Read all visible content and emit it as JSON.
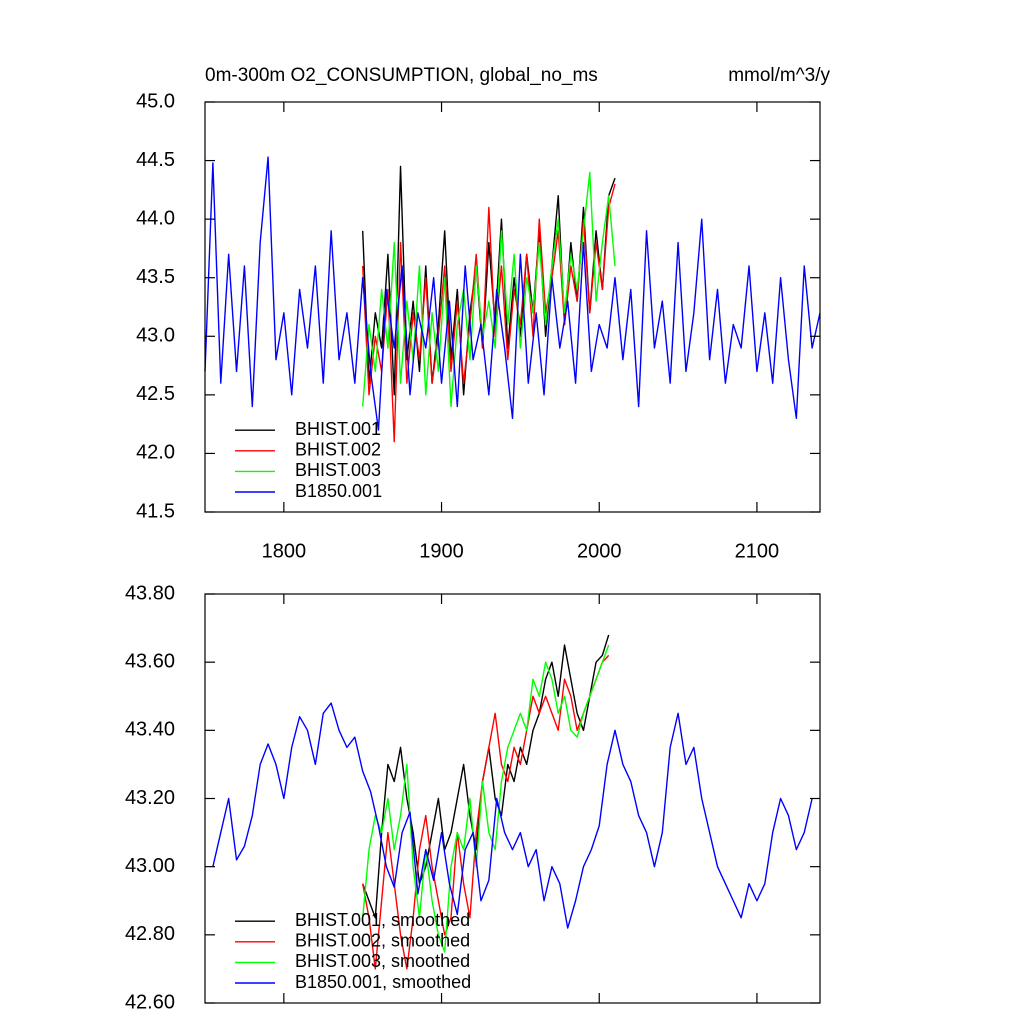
{
  "chart_data": [
    {
      "type": "line",
      "title": "0m-300m O2_CONSUMPTION, global_no_ms",
      "units": "mmol/m^3/y",
      "xlim": [
        1750,
        2140
      ],
      "xticks": [
        1800,
        1900,
        2000,
        2100
      ],
      "ylim": [
        41.5,
        45.0
      ],
      "yticks": [
        41.5,
        {
          "value": 42.0,
          "label": "42.0"
        },
        42.5,
        {
          "value": 43.0,
          "label": "43.0"
        },
        43.5,
        {
          "value": 44.0,
          "label": "44.0"
        },
        44.5,
        {
          "value": 45.0,
          "label": "45.0"
        }
      ],
      "legend": "lower left",
      "series": [
        {
          "name": "BHIST.001",
          "color": "#000000",
          "x": [
            1850,
            1854,
            1858,
            1862,
            1866,
            1870,
            1874,
            1878,
            1882,
            1886,
            1890,
            1894,
            1898,
            1902,
            1906,
            1910,
            1914,
            1918,
            1922,
            1926,
            1930,
            1934,
            1938,
            1942,
            1946,
            1950,
            1954,
            1958,
            1962,
            1966,
            1970,
            1974,
            1978,
            1982,
            1986,
            1990,
            1994,
            1998,
            2002,
            2006,
            2010
          ],
          "values": [
            43.9,
            42.6,
            43.2,
            42.9,
            43.7,
            42.5,
            44.45,
            42.8,
            43.3,
            42.7,
            43.6,
            42.6,
            43.1,
            43.9,
            42.8,
            43.4,
            42.5,
            43.2,
            43.6,
            42.9,
            43.8,
            43.1,
            44.0,
            42.9,
            43.5,
            43.0,
            43.7,
            43.2,
            43.9,
            43.0,
            43.6,
            44.2,
            43.1,
            43.8,
            43.3,
            44.1,
            43.2,
            43.9,
            43.4,
            44.2,
            44.35
          ]
        },
        {
          "name": "BHIST.002",
          "color": "#ff0000",
          "x": [
            1850,
            1854,
            1858,
            1862,
            1866,
            1870,
            1874,
            1878,
            1882,
            1886,
            1890,
            1894,
            1898,
            1902,
            1906,
            1910,
            1914,
            1918,
            1922,
            1926,
            1930,
            1934,
            1938,
            1942,
            1946,
            1950,
            1954,
            1958,
            1962,
            1966,
            1970,
            1974,
            1978,
            1982,
            1986,
            1990,
            1994,
            1998,
            2002,
            2006,
            2010
          ],
          "values": [
            43.6,
            42.5,
            43.0,
            42.7,
            43.4,
            42.1,
            43.8,
            42.6,
            43.2,
            42.8,
            43.5,
            42.6,
            43.0,
            43.6,
            42.7,
            43.3,
            42.6,
            43.1,
            43.7,
            42.9,
            44.1,
            43.0,
            43.6,
            42.8,
            43.4,
            43.1,
            43.7,
            43.0,
            44.0,
            43.2,
            43.5,
            43.9,
            43.1,
            43.6,
            43.3,
            44.0,
            43.2,
            43.8,
            43.4,
            44.1,
            44.3
          ]
        },
        {
          "name": "BHIST.003",
          "color": "#00ff00",
          "x": [
            1850,
            1854,
            1858,
            1862,
            1866,
            1870,
            1874,
            1878,
            1882,
            1886,
            1890,
            1894,
            1898,
            1902,
            1906,
            1910,
            1914,
            1918,
            1922,
            1926,
            1930,
            1934,
            1938,
            1942,
            1946,
            1950,
            1954,
            1958,
            1962,
            1966,
            1970,
            1974,
            1978,
            1982,
            1986,
            1990,
            1994,
            1998,
            2002,
            2006,
            2010
          ],
          "values": [
            42.4,
            43.1,
            42.7,
            43.4,
            42.9,
            43.8,
            42.6,
            43.3,
            42.8,
            43.6,
            42.5,
            43.2,
            42.7,
            43.5,
            42.4,
            43.1,
            43.4,
            42.8,
            43.6,
            43.0,
            43.3,
            42.9,
            43.9,
            43.1,
            43.7,
            42.9,
            43.5,
            43.2,
            43.8,
            43.1,
            43.6,
            44.0,
            43.2,
            43.7,
            43.4,
            43.9,
            44.4,
            43.3,
            43.8,
            44.2,
            43.6
          ]
        },
        {
          "name": "B1850.001",
          "color": "#0000ff",
          "x": [
            1750,
            1755,
            1760,
            1765,
            1770,
            1775,
            1780,
            1785,
            1790,
            1795,
            1800,
            1805,
            1810,
            1815,
            1820,
            1825,
            1830,
            1835,
            1840,
            1845,
            1850,
            1855,
            1860,
            1865,
            1870,
            1875,
            1880,
            1885,
            1890,
            1895,
            1900,
            1905,
            1910,
            1915,
            1920,
            1925,
            1930,
            1935,
            1940,
            1945,
            1950,
            1955,
            1960,
            1965,
            1970,
            1975,
            1980,
            1985,
            1990,
            1995,
            2000,
            2005,
            2010,
            2015,
            2020,
            2025,
            2030,
            2035,
            2040,
            2045,
            2050,
            2055,
            2060,
            2065,
            2070,
            2075,
            2080,
            2085,
            2090,
            2095,
            2100,
            2105,
            2110,
            2115,
            2120,
            2125,
            2130,
            2135,
            2140
          ],
          "values": [
            42.7,
            44.48,
            42.6,
            43.7,
            42.7,
            43.6,
            42.4,
            43.8,
            44.53,
            42.8,
            43.2,
            42.5,
            43.4,
            42.9,
            43.6,
            42.6,
            43.9,
            42.8,
            43.2,
            42.6,
            43.5,
            42.7,
            42.2,
            43.4,
            42.9,
            43.6,
            42.5,
            43.2,
            42.9,
            43.5,
            42.6,
            43.3,
            42.4,
            43.6,
            42.8,
            43.1,
            42.5,
            43.4,
            42.9,
            42.3,
            43.7,
            42.6,
            43.2,
            42.5,
            43.5,
            42.9,
            43.3,
            42.6,
            43.8,
            42.7,
            43.1,
            42.9,
            43.5,
            42.8,
            43.4,
            42.4,
            43.9,
            42.9,
            43.3,
            42.6,
            43.8,
            42.7,
            43.2,
            44.0,
            42.8,
            43.4,
            42.6,
            43.1,
            42.9,
            43.6,
            42.7,
            43.2,
            42.6,
            43.5,
            42.8,
            42.3,
            43.6,
            42.9,
            43.2
          ]
        }
      ]
    },
    {
      "type": "line",
      "xlim": [
        1750,
        2140
      ],
      "xticks": [
        1800,
        1900,
        2000,
        2100
      ],
      "xtick_labels": false,
      "ylim": [
        42.6,
        43.8
      ],
      "yticks": [
        {
          "value": 42.6,
          "label": "42.60"
        },
        {
          "value": 42.8,
          "label": "42.80"
        },
        {
          "value": 43.0,
          "label": "43.00"
        },
        {
          "value": 43.2,
          "label": "43.20"
        },
        {
          "value": 43.4,
          "label": "43.40"
        },
        {
          "value": 43.6,
          "label": "43.60"
        },
        {
          "value": 43.8,
          "label": "43.80"
        }
      ],
      "legend": "lower left",
      "series": [
        {
          "name": "BHIST.001, smoothed",
          "color": "#000000",
          "x": [
            1850,
            1854,
            1858,
            1862,
            1866,
            1870,
            1874,
            1878,
            1882,
            1886,
            1890,
            1894,
            1898,
            1902,
            1906,
            1910,
            1914,
            1918,
            1922,
            1926,
            1930,
            1934,
            1938,
            1942,
            1946,
            1950,
            1954,
            1958,
            1962,
            1966,
            1970,
            1974,
            1978,
            1982,
            1986,
            1990,
            1994,
            1998,
            2002,
            2006
          ],
          "values": [
            42.95,
            42.9,
            42.85,
            43.1,
            43.3,
            43.25,
            43.35,
            43.2,
            43.1,
            42.95,
            43.0,
            43.1,
            43.2,
            43.05,
            43.1,
            43.2,
            43.3,
            43.15,
            43.05,
            43.25,
            43.35,
            43.2,
            43.15,
            43.3,
            43.25,
            43.35,
            43.3,
            43.4,
            43.45,
            43.55,
            43.6,
            43.5,
            43.65,
            43.55,
            43.45,
            43.4,
            43.5,
            43.6,
            43.62,
            43.68
          ]
        },
        {
          "name": "BHIST.002, smoothed",
          "color": "#ff0000",
          "x": [
            1850,
            1854,
            1858,
            1862,
            1866,
            1870,
            1874,
            1878,
            1882,
            1886,
            1890,
            1894,
            1898,
            1902,
            1906,
            1910,
            1914,
            1918,
            1922,
            1926,
            1930,
            1934,
            1938,
            1942,
            1946,
            1950,
            1954,
            1958,
            1962,
            1966,
            1970,
            1974,
            1978,
            1982,
            1986,
            1990,
            1994,
            1998,
            2002,
            2006
          ],
          "values": [
            42.95,
            42.85,
            42.7,
            42.9,
            43.1,
            42.95,
            42.8,
            42.7,
            42.85,
            43.05,
            43.15,
            43.0,
            42.9,
            42.8,
            42.85,
            43.1,
            42.95,
            42.85,
            43.1,
            43.25,
            43.35,
            43.45,
            43.3,
            43.25,
            43.35,
            43.3,
            43.4,
            43.5,
            43.45,
            43.5,
            43.45,
            43.4,
            43.55,
            43.5,
            43.4,
            43.45,
            43.5,
            43.55,
            43.6,
            43.62
          ]
        },
        {
          "name": "BHIST.003, smoothed",
          "color": "#00ff00",
          "x": [
            1850,
            1854,
            1858,
            1862,
            1866,
            1870,
            1874,
            1878,
            1882,
            1886,
            1890,
            1894,
            1898,
            1902,
            1906,
            1910,
            1914,
            1918,
            1922,
            1926,
            1930,
            1934,
            1938,
            1942,
            1946,
            1950,
            1954,
            1958,
            1962,
            1966,
            1970,
            1974,
            1978,
            1982,
            1986,
            1990,
            1994,
            1998,
            2002,
            2006
          ],
          "values": [
            42.85,
            43.05,
            43.15,
            43.1,
            43.2,
            43.05,
            43.15,
            43.3,
            43.0,
            42.85,
            43.05,
            42.9,
            42.8,
            42.75,
            43.0,
            43.1,
            43.05,
            43.2,
            43.0,
            43.25,
            43.1,
            43.05,
            43.25,
            43.35,
            43.4,
            43.45,
            43.4,
            43.55,
            43.5,
            43.6,
            43.55,
            43.45,
            43.5,
            43.4,
            43.38,
            43.45,
            43.5,
            43.55,
            43.6,
            43.65
          ]
        },
        {
          "name": "B1850.001, smoothed",
          "color": "#0000ff",
          "x": [
            1755,
            1760,
            1765,
            1770,
            1775,
            1780,
            1785,
            1790,
            1795,
            1800,
            1805,
            1810,
            1815,
            1820,
            1825,
            1830,
            1835,
            1840,
            1845,
            1850,
            1855,
            1860,
            1865,
            1870,
            1875,
            1880,
            1885,
            1890,
            1895,
            1900,
            1905,
            1910,
            1915,
            1920,
            1925,
            1930,
            1935,
            1940,
            1945,
            1950,
            1955,
            1960,
            1965,
            1970,
            1975,
            1980,
            1985,
            1990,
            1995,
            2000,
            2005,
            2010,
            2015,
            2020,
            2025,
            2030,
            2035,
            2040,
            2045,
            2050,
            2055,
            2060,
            2065,
            2070,
            2075,
            2080,
            2085,
            2090,
            2095,
            2100,
            2105,
            2110,
            2115,
            2120,
            2125,
            2130,
            2135
          ],
          "values": [
            43.0,
            43.1,
            43.2,
            43.02,
            43.06,
            43.15,
            43.3,
            43.36,
            43.3,
            43.2,
            43.35,
            43.44,
            43.4,
            43.3,
            43.45,
            43.48,
            43.4,
            43.35,
            43.38,
            43.28,
            43.22,
            43.12,
            43.0,
            42.94,
            43.1,
            43.16,
            42.92,
            43.05,
            42.96,
            43.1,
            42.95,
            42.86,
            43.05,
            43.1,
            42.9,
            42.96,
            43.2,
            43.1,
            43.05,
            43.1,
            43.0,
            43.05,
            42.9,
            43.0,
            42.95,
            42.82,
            42.9,
            43.0,
            43.05,
            43.12,
            43.3,
            43.4,
            43.3,
            43.25,
            43.15,
            43.1,
            43.0,
            43.1,
            43.35,
            43.45,
            43.3,
            43.35,
            43.2,
            43.1,
            43.0,
            42.95,
            42.9,
            42.85,
            42.95,
            42.9,
            42.95,
            43.1,
            43.2,
            43.15,
            43.05,
            43.1,
            43.2
          ]
        }
      ]
    }
  ]
}
